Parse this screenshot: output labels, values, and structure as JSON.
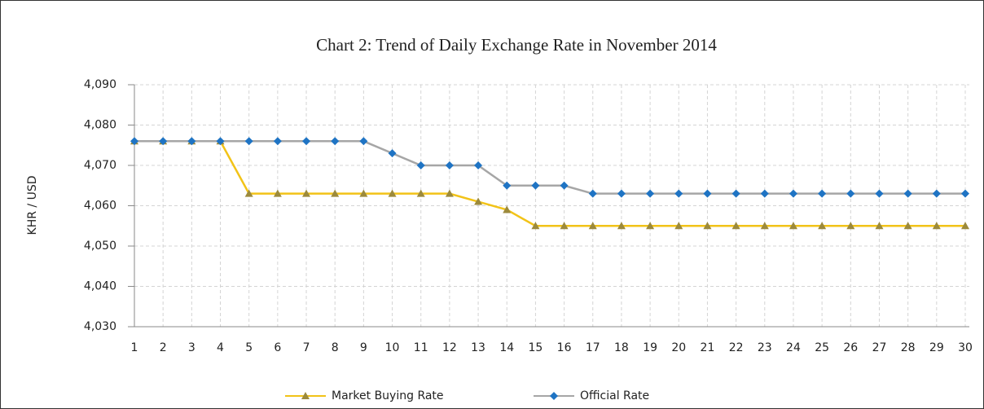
{
  "chart_data": {
    "type": "line",
    "title": "Chart 2: Trend of Daily Exchange Rate in November 2014",
    "y_label": "KHR / USD",
    "categories": [
      "1",
      "2",
      "3",
      "4",
      "5",
      "6",
      "7",
      "8",
      "9",
      "10",
      "11",
      "12",
      "13",
      "14",
      "15",
      "16",
      "17",
      "18",
      "19",
      "20",
      "21",
      "22",
      "23",
      "24",
      "25",
      "26",
      "27",
      "28",
      "29",
      "30"
    ],
    "series": [
      {
        "name": "Market Buying Rate",
        "color": "#f2c318",
        "marker_color": "#9c8a3c",
        "marker": "triangle",
        "values": [
          4076,
          4076,
          4076,
          4076,
          4063,
          4063,
          4063,
          4063,
          4063,
          4063,
          4063,
          4063,
          4061,
          4059,
          4055,
          4055,
          4055,
          4055,
          4055,
          4055,
          4055,
          4055,
          4055,
          4055,
          4055,
          4055,
          4055,
          4055,
          4055,
          4055
        ]
      },
      {
        "name": "Official Rate",
        "color": "#a6a6a6",
        "marker_color": "#1f74c4",
        "marker": "diamond",
        "values": [
          4076,
          4076,
          4076,
          4076,
          4076,
          4076,
          4076,
          4076,
          4076,
          4073,
          4070,
          4070,
          4070,
          4065,
          4065,
          4065,
          4063,
          4063,
          4063,
          4063,
          4063,
          4063,
          4063,
          4063,
          4063,
          4063,
          4063,
          4063,
          4063,
          4063
        ]
      }
    ],
    "ylim": [
      4030,
      4090
    ],
    "yticks": [
      {
        "value": 4030,
        "label": "4,030"
      },
      {
        "value": 4040,
        "label": "4,040"
      },
      {
        "value": 4050,
        "label": "4,050"
      },
      {
        "value": 4060,
        "label": "4,060"
      },
      {
        "value": 4070,
        "label": "4,070"
      },
      {
        "value": 4080,
        "label": "4,080"
      },
      {
        "value": 4090,
        "label": "4,090"
      }
    ],
    "grid": true,
    "legend": "bottom"
  }
}
